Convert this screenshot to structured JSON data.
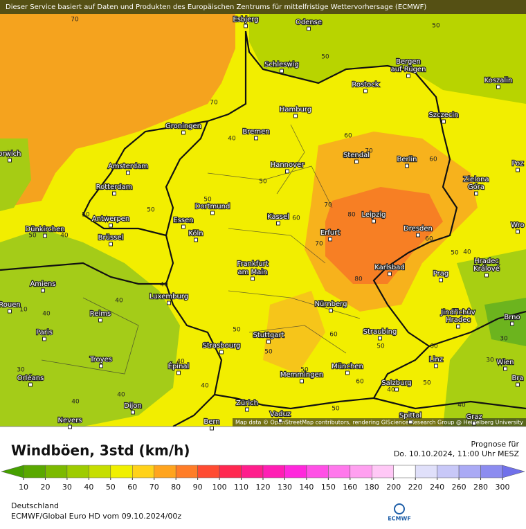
{
  "banner": "Dieser Service basiert auf Daten und Produkten des Europäischen Zentrums für mittelfristige Wettervorhersage (ECMWF)",
  "attribution": "Map data © OpenStreetMap contributors, rendering GIScience Research Group @ Heidelberg University",
  "title": "Windböen, 3std (km/h)",
  "forecast_label": "Prognose für",
  "forecast_time": "Do. 10.10.2024, 11:00 Uhr MESZ",
  "region": "Deutschland",
  "model_run": "ECMWF/Global Euro HD vom  09.10.2024/00z",
  "logo_text": "ECMWF",
  "cities": [
    "Esbjerg",
    "Odense",
    "Schleswig",
    "Bergen",
    "auf Rügen",
    "Koszalin",
    "Rostock",
    "Hamburg",
    "Szczecin",
    "Groningen",
    "Bremen",
    "Stendal",
    "Berlin",
    "Amsterdam",
    "Hannover",
    "orwich",
    "Poz",
    "Zielona",
    "Góra",
    "Rotterdam",
    "Dortmund",
    "Leipzig",
    "Kassel",
    "Essen",
    "Antwerpen",
    "Wro",
    "Dresden",
    "Dünkirchen",
    "Köln",
    "Erfurt",
    "Brüssel",
    "Frankfurt",
    "am Main",
    "Hradec",
    "Králové",
    "Karlsbad",
    "Prag",
    "Amiens",
    "Luxemburg",
    "Rouen",
    "Nürnberg",
    "Jindřichův",
    "Hradec",
    "Reims",
    "Brno",
    "Paris",
    "Straubing",
    "Stuttgart",
    "Strasbourg",
    "Troyes",
    "Linz",
    "Wien",
    "Épinal",
    "München",
    "Memmingen",
    "Orléans",
    "Bra",
    "Salzburg",
    "Zürich",
    "Dijon",
    "Vaduz",
    "Spittal",
    "Graz",
    "Bern",
    "Nevers"
  ],
  "contour_labels": [
    70,
    50,
    50,
    70,
    40,
    60,
    70,
    60,
    50,
    50,
    50,
    70,
    80,
    70,
    60,
    50,
    40,
    50,
    60,
    50,
    40,
    80,
    40,
    40,
    40,
    10,
    60,
    50,
    50,
    60,
    50,
    40,
    30,
    30,
    40,
    40,
    40,
    50,
    50,
    60,
    40,
    50,
    40,
    30
  ],
  "legend": {
    "ticks": [
      10,
      20,
      30,
      40,
      50,
      60,
      70,
      80,
      90,
      100,
      110,
      120,
      130,
      140,
      150,
      160,
      180,
      200,
      220,
      240,
      260,
      280,
      300
    ],
    "colors": [
      "#46a000",
      "#5aa800",
      "#7cba00",
      "#9ecc00",
      "#c6de00",
      "#f0f000",
      "#ffd21a",
      "#ffa41e",
      "#ff7d28",
      "#ff4b32",
      "#ff2850",
      "#ff1e8c",
      "#ff1eb4",
      "#ff28dc",
      "#ff50e6",
      "#ff78ec",
      "#ffa0f0",
      "#ffc8f6",
      "#ffffff",
      "#e0e0fa",
      "#c8c8f8",
      "#aaaaf5",
      "#8c8cf0",
      "#7070ea"
    ]
  }
}
